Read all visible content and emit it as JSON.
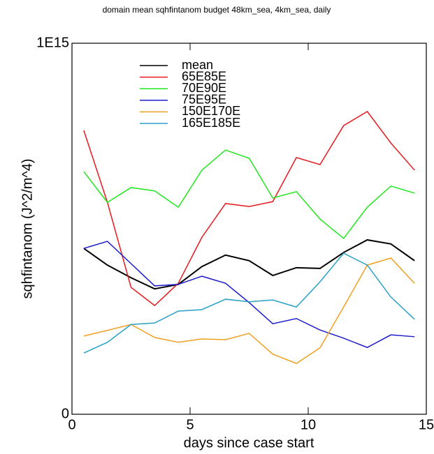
{
  "chart_data": {
    "type": "line",
    "title": "domain mean sqhfintanom budget 48km_sea, 4km_sea, daily",
    "xlabel": "days since case start",
    "ylabel": "sqhfintanom (J^2/m^4)",
    "x": [
      0.5,
      1.5,
      2.5,
      3.5,
      4.5,
      5.5,
      6.5,
      7.5,
      8.5,
      9.5,
      10.5,
      11.5,
      12.5,
      13.5,
      14.5
    ],
    "xlim": [
      0,
      15
    ],
    "xticks": [
      0,
      5,
      10,
      15
    ],
    "ylim": [
      0,
      1000000000000000.0
    ],
    "yticks": [
      0,
      {
        "value": 1000000000000000.0,
        "label": "1E15"
      }
    ],
    "series": [
      {
        "name": "mean",
        "color": "#000000",
        "values": [
          447000000000000.0,
          402000000000000.0,
          368000000000000.0,
          338000000000000.0,
          350000000000000.0,
          398000000000000.0,
          429000000000000.0,
          414000000000000.0,
          374000000000000.0,
          395000000000000.0,
          393000000000000.0,
          436000000000000.0,
          470000000000000.0,
          459000000000000.0,
          414000000000000.0
        ]
      },
      {
        "name": "65E85E",
        "color": "#e8191c",
        "values": [
          765000000000000.0,
          571000000000000.0,
          342000000000000.0,
          293000000000000.0,
          353000000000000.0,
          477000000000000.0,
          568000000000000.0,
          560000000000000.0,
          573000000000000.0,
          692000000000000.0,
          673000000000000.0,
          778000000000000.0,
          816000000000000.0,
          731000000000000.0,
          658000000000000.0
        ]
      },
      {
        "name": "70E90E",
        "color": "#22e61e",
        "values": [
          654000000000000.0,
          571000000000000.0,
          611000000000000.0,
          602000000000000.0,
          558000000000000.0,
          658000000000000.0,
          712000000000000.0,
          690000000000000.0,
          583000000000000.0,
          600000000000000.0,
          526000000000000.0,
          474000000000000.0,
          558000000000000.0,
          615000000000000.0,
          596000000000000.0
        ]
      },
      {
        "name": "75E95E",
        "color": "#1c1ccc",
        "values": [
          447000000000000.0,
          466000000000000.0,
          406000000000000.0,
          346000000000000.0,
          350000000000000.0,
          372000000000000.0,
          353000000000000.0,
          301000000000000.0,
          244000000000000.0,
          258000000000000.0,
          227000000000000.0,
          205000000000000.0,
          180000000000000.0,
          214000000000000.0,
          209000000000000.0
        ]
      },
      {
        "name": "150E170E",
        "color": "#f0a020",
        "values": [
          211000000000000.0,
          226000000000000.0,
          242000000000000.0,
          207000000000000.0,
          194000000000000.0,
          203000000000000.0,
          201000000000000.0,
          218000000000000.0,
          162000000000000.0,
          137000000000000.0,
          179000000000000.0,
          289000000000000.0,
          402000000000000.0,
          421000000000000.0,
          353000000000000.0
        ]
      },
      {
        "name": "165E185E",
        "color": "#2aa0c8",
        "values": [
          165000000000000.0,
          194000000000000.0,
          242000000000000.0,
          246000000000000.0,
          278000000000000.0,
          282000000000000.0,
          310000000000000.0,
          303000000000000.0,
          308000000000000.0,
          289000000000000.0,
          357000000000000.0,
          434000000000000.0,
          402000000000000.0,
          316000000000000.0,
          256000000000000.0
        ]
      }
    ]
  }
}
